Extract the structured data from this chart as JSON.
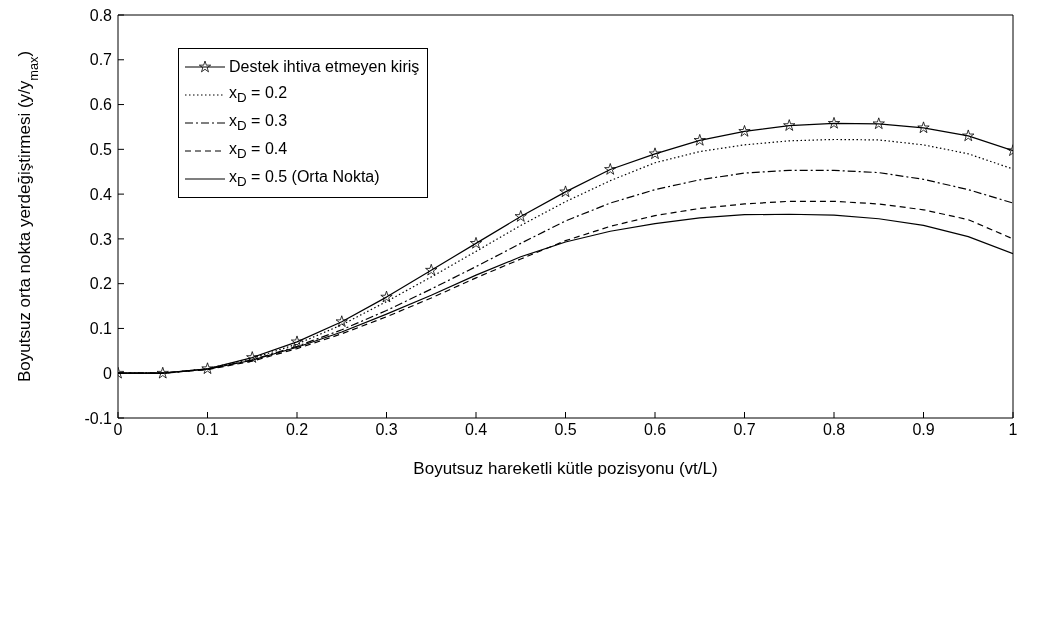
{
  "chart_data": {
    "type": "line",
    "xlabel": "Boyutsuz hareketli kütle pozisyonu (vt/L)",
    "ylabel": "Boyutsuz orta nokta yerdeğiştirmesi (y/y$_{max}$)",
    "x": [
      0,
      0.05,
      0.1,
      0.15,
      0.2,
      0.25,
      0.3,
      0.35,
      0.4,
      0.45,
      0.5,
      0.55,
      0.6,
      0.65,
      0.7,
      0.75,
      0.8,
      0.85,
      0.9,
      0.95,
      1
    ],
    "series": [
      {
        "name": "Destek ihtiva etmeyen kiriş",
        "color": "#000000",
        "marker": "star",
        "line_style": "solid",
        "values": [
          0,
          0,
          0.01,
          0.035,
          0.07,
          0.115,
          0.17,
          0.23,
          0.29,
          0.35,
          0.405,
          0.455,
          0.49,
          0.52,
          0.54,
          0.553,
          0.558,
          0.557,
          0.548,
          0.53,
          0.497
        ]
      },
      {
        "name": "x$_{D}$ = 0.2",
        "color": "#000000",
        "marker": "none",
        "line_style": "dotted",
        "values": [
          0,
          0,
          0.01,
          0.033,
          0.065,
          0.108,
          0.16,
          0.215,
          0.272,
          0.33,
          0.383,
          0.43,
          0.47,
          0.495,
          0.51,
          0.519,
          0.522,
          0.521,
          0.51,
          0.49,
          0.456
        ]
      },
      {
        "name": "x$_{D}$ = 0.3",
        "color": "#000000",
        "marker": "none",
        "line_style": "dashdot",
        "values": [
          0,
          0,
          0.009,
          0.03,
          0.06,
          0.097,
          0.14,
          0.188,
          0.238,
          0.29,
          0.34,
          0.38,
          0.41,
          0.432,
          0.447,
          0.453,
          0.453,
          0.448,
          0.433,
          0.41,
          0.38
        ]
      },
      {
        "name": "x$_{D}$ = 0.4",
        "color": "#000000",
        "marker": "none",
        "line_style": "dashed",
        "values": [
          0,
          0,
          0.008,
          0.027,
          0.055,
          0.088,
          0.126,
          0.168,
          0.213,
          0.255,
          0.296,
          0.328,
          0.352,
          0.368,
          0.378,
          0.384,
          0.384,
          0.378,
          0.365,
          0.343,
          0.3
        ]
      },
      {
        "name": "x$_{D}$ = 0.5 (Orta Nokta)",
        "color": "#000000",
        "marker": "none",
        "line_style": "solid",
        "values": [
          0,
          0,
          0.009,
          0.029,
          0.058,
          0.092,
          0.132,
          0.174,
          0.219,
          0.26,
          0.293,
          0.317,
          0.334,
          0.347,
          0.354,
          0.355,
          0.353,
          0.345,
          0.33,
          0.305,
          0.267
        ]
      }
    ],
    "xlim": [
      0,
      1
    ],
    "ylim": [
      -0.1,
      0.8
    ],
    "xticks": [
      0,
      0.1,
      0.2,
      0.3,
      0.4,
      0.5,
      0.6,
      0.7,
      0.8,
      0.9,
      1
    ],
    "yticks": [
      -0.1,
      0,
      0.1,
      0.2,
      0.3,
      0.4,
      0.5,
      0.6,
      0.7,
      0.8
    ],
    "grid": false,
    "legend": "top left"
  }
}
